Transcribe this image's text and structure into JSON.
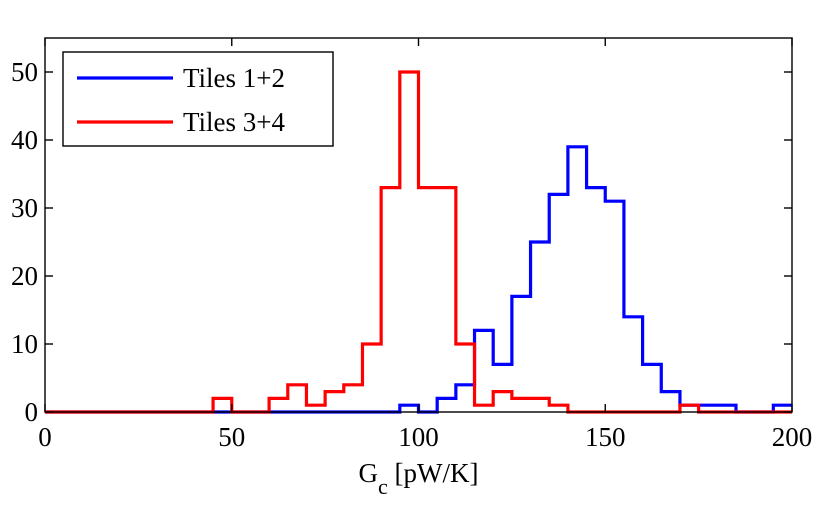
{
  "chart_data": {
    "type": "line",
    "subtype": "step-histogram",
    "title": "",
    "xlabel": "G",
    "xlabel_subscript": "c",
    "xlabel_units": " [pW/K]",
    "ylabel": "",
    "xlim": [
      0,
      200
    ],
    "ylim": [
      0,
      55
    ],
    "xticks": [
      0,
      50,
      100,
      150,
      200
    ],
    "yticks": [
      0,
      10,
      20,
      30,
      40,
      50
    ],
    "bin_width": 5,
    "bin_edges": [
      0,
      5,
      10,
      15,
      20,
      25,
      30,
      35,
      40,
      45,
      50,
      55,
      60,
      65,
      70,
      75,
      80,
      85,
      90,
      95,
      100,
      105,
      110,
      115,
      120,
      125,
      130,
      135,
      140,
      145,
      150,
      155,
      160,
      165,
      170,
      175,
      180,
      185,
      190,
      195,
      200
    ],
    "legend_position": "top-left",
    "series": [
      {
        "name": "Tiles 1+2",
        "color": "#0000ff",
        "values": [
          0,
          0,
          0,
          0,
          0,
          0,
          0,
          0,
          0,
          0,
          0,
          0,
          0,
          0,
          0,
          0,
          0,
          0,
          0,
          1,
          0,
          2,
          4,
          12,
          7,
          17,
          25,
          32,
          39,
          33,
          31,
          14,
          7,
          3,
          1,
          1,
          1,
          0,
          0,
          1
        ]
      },
      {
        "name": "Tiles 3+4",
        "color": "#ff0000",
        "values": [
          0,
          0,
          0,
          0,
          0,
          0,
          0,
          0,
          0,
          2,
          0,
          0,
          2,
          4,
          1,
          3,
          4,
          10,
          33,
          50,
          33,
          33,
          10,
          1,
          3,
          2,
          2,
          1,
          0,
          0,
          0,
          0,
          0,
          0,
          1,
          0,
          0,
          0,
          0,
          0
        ]
      }
    ]
  }
}
